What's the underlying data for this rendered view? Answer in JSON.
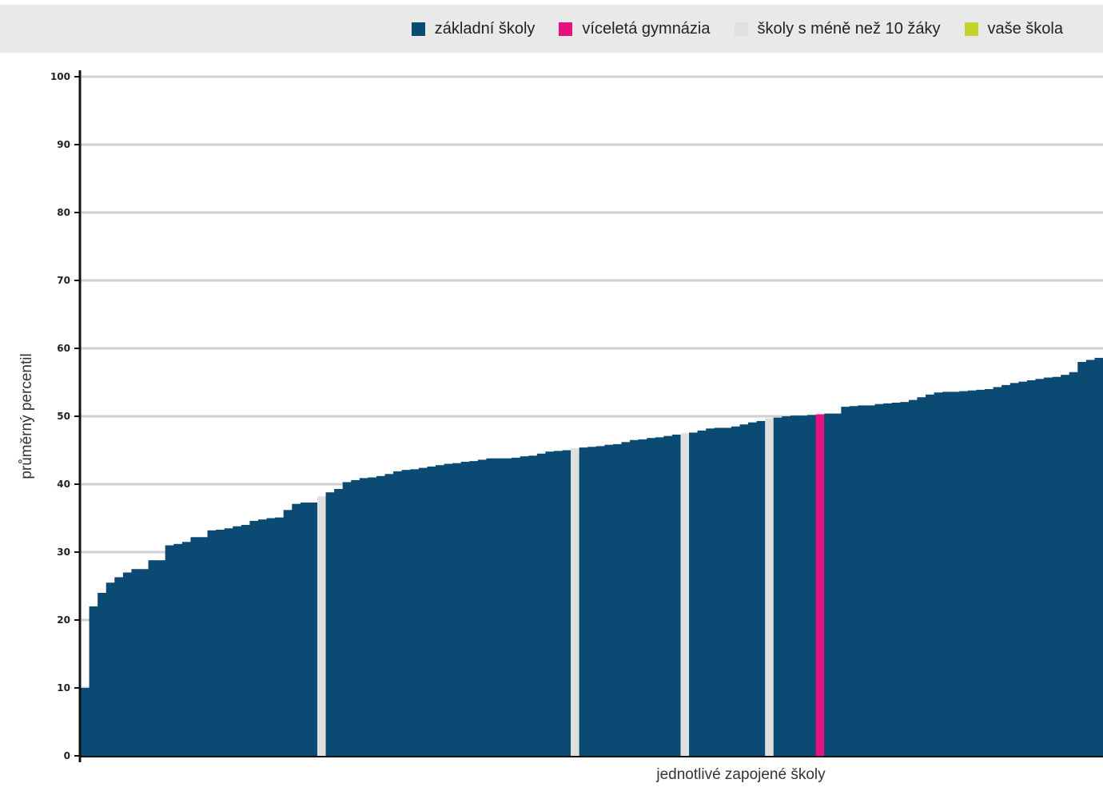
{
  "colors": {
    "zakladni": "#0b4a72",
    "gymnazia": "#e5127d",
    "small": "#e0e0e0",
    "vase": "#c5d32c",
    "grid": "#cfcfcf",
    "axis": "#111111",
    "legend_bg": "#e9e9e9"
  },
  "legend": {
    "items": [
      {
        "label": "základní školy",
        "color": "#0b4a72"
      },
      {
        "label": "víceletá gymnázia",
        "color": "#e5127d"
      },
      {
        "label": "školy s méně než 10 žáky",
        "color": "#e0e0e0"
      },
      {
        "label": "vaše škola",
        "color": "#c5d32c"
      }
    ]
  },
  "chart_data": {
    "type": "bar",
    "xlabel": "jednotlivé zapojené školy",
    "ylabel": "průměrný percentil",
    "ylim": [
      0,
      100
    ],
    "yticks": [
      "0",
      "10",
      "20",
      "30",
      "40",
      "50",
      "60",
      "70",
      "80",
      "90",
      "100"
    ],
    "grid": true,
    "legend_position": "top-right",
    "values": [
      10,
      22,
      24,
      25.5,
      26.3,
      27,
      27.5,
      27.5,
      28.8,
      28.8,
      31,
      31.2,
      31.5,
      32.2,
      32.2,
      33.2,
      33.3,
      33.5,
      33.8,
      34,
      34.6,
      34.8,
      35,
      35.1,
      36.2,
      37.1,
      37.3,
      37.3,
      38.2,
      38.8,
      39.3,
      40.3,
      40.6,
      40.9,
      41,
      41.2,
      41.5,
      41.9,
      42.1,
      42.2,
      42.4,
      42.6,
      42.8,
      43,
      43.1,
      43.3,
      43.4,
      43.6,
      43.8,
      43.8,
      43.8,
      43.9,
      44.1,
      44.2,
      44.5,
      44.8,
      44.9,
      45,
      45.3,
      45.4,
      45.5,
      45.6,
      45.8,
      45.9,
      46.2,
      46.5,
      46.6,
      46.8,
      46.9,
      47.1,
      47.3,
      47.5,
      47.6,
      47.9,
      48.2,
      48.3,
      48.3,
      48.5,
      48.8,
      49.1,
      49.3,
      49.7,
      49.8,
      50,
      50.1,
      50.1,
      50.2,
      50.3,
      50.4,
      50.4,
      51.4,
      51.5,
      51.6,
      51.6,
      51.8,
      51.9,
      52,
      52.1,
      52.4,
      52.8,
      53.2,
      53.5,
      53.6,
      53.6,
      53.7,
      53.8,
      53.9,
      54,
      54.3,
      54.6,
      54.9,
      55.1,
      55.3,
      55.5,
      55.7,
      55.8,
      56.1,
      56.5,
      58,
      58.3,
      58.6
    ],
    "groups": [
      "z",
      "z",
      "z",
      "z",
      "z",
      "z",
      "z",
      "z",
      "z",
      "z",
      "z",
      "z",
      "z",
      "z",
      "z",
      "z",
      "z",
      "z",
      "z",
      "z",
      "z",
      "z",
      "z",
      "z",
      "z",
      "z",
      "z",
      "z",
      "s",
      "z",
      "z",
      "z",
      "z",
      "z",
      "z",
      "z",
      "z",
      "z",
      "z",
      "z",
      "z",
      "z",
      "z",
      "z",
      "z",
      "z",
      "z",
      "z",
      "z",
      "z",
      "z",
      "z",
      "z",
      "z",
      "z",
      "z",
      "z",
      "z",
      "s",
      "z",
      "z",
      "z",
      "z",
      "z",
      "z",
      "z",
      "z",
      "z",
      "z",
      "z",
      "z",
      "s",
      "z",
      "z",
      "z",
      "z",
      "z",
      "z",
      "z",
      "z",
      "z",
      "s",
      "z",
      "z",
      "z",
      "z",
      "z",
      "g",
      "z",
      "z",
      "z",
      "z",
      "z",
      "z",
      "z",
      "z",
      "z",
      "z",
      "z",
      "z",
      "z",
      "z",
      "z",
      "z",
      "z",
      "z",
      "z",
      "z",
      "z",
      "z",
      "z",
      "z",
      "z",
      "z",
      "z",
      "z",
      "z",
      "z",
      "z"
    ]
  }
}
